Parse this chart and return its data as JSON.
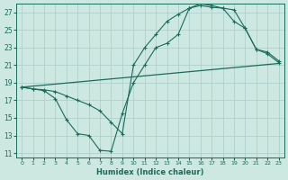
{
  "xlabel": "Humidex (Indice chaleur)",
  "bg_color": "#cce8e0",
  "grid_color": "#aacccc",
  "line_color": "#1a6b5a",
  "xlim": [
    -0.5,
    23.5
  ],
  "ylim": [
    10.5,
    28.0
  ],
  "xticks": [
    0,
    1,
    2,
    3,
    4,
    5,
    6,
    7,
    8,
    9,
    10,
    11,
    12,
    13,
    14,
    15,
    16,
    17,
    18,
    19,
    20,
    21,
    22,
    23
  ],
  "yticks": [
    11,
    13,
    15,
    17,
    19,
    21,
    23,
    25,
    27
  ],
  "straight_line_x": [
    0,
    23
  ],
  "straight_line_y": [
    18.5,
    21.2
  ],
  "jagged_x": [
    0,
    1,
    2,
    3,
    4,
    5,
    6,
    7,
    8,
    9,
    10,
    11,
    12,
    13,
    14,
    15,
    16,
    17,
    18,
    19,
    20,
    21,
    22,
    23
  ],
  "jagged_y": [
    18.5,
    18.3,
    18.1,
    17.2,
    14.8,
    13.2,
    13.0,
    11.3,
    11.2,
    15.5,
    19.0,
    21.0,
    23.0,
    23.5,
    24.5,
    27.5,
    28.0,
    27.8,
    27.5,
    26.0,
    25.2,
    22.8,
    22.5,
    21.5
  ],
  "smooth_x": [
    0,
    1,
    2,
    3,
    4,
    5,
    6,
    7,
    8,
    9,
    10,
    11,
    12,
    13,
    14,
    15,
    16,
    17,
    18,
    19,
    20,
    21,
    22,
    23
  ],
  "smooth_y": [
    18.5,
    18.3,
    18.2,
    18.0,
    17.5,
    17.0,
    16.5,
    15.8,
    14.5,
    13.2,
    21.0,
    23.0,
    24.5,
    26.0,
    26.8,
    27.5,
    27.8,
    27.6,
    27.5,
    27.3,
    25.2,
    22.8,
    22.3,
    21.3
  ]
}
